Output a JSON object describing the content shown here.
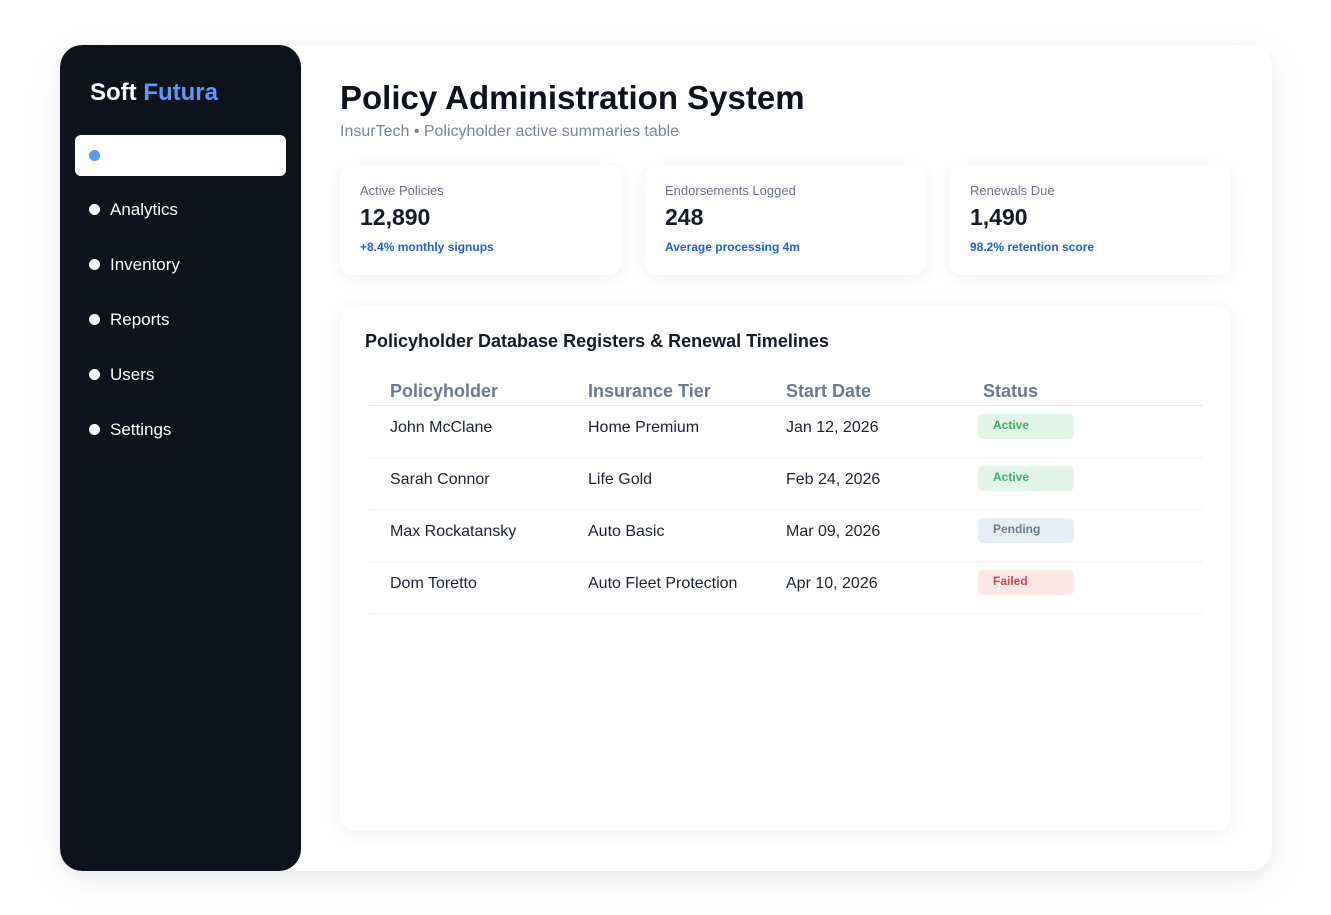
{
  "brand": {
    "name": "Soft",
    "accent": "Futura"
  },
  "sidebar": {
    "items": [
      {
        "label": ""
      },
      {
        "label": "Analytics"
      },
      {
        "label": "Inventory"
      },
      {
        "label": "Reports"
      },
      {
        "label": "Users"
      },
      {
        "label": "Settings"
      }
    ]
  },
  "header": {
    "title": "Policy Administration System",
    "subtitle": "InsurTech • Policyholder active summaries table"
  },
  "stats": [
    {
      "label": "Active Policies",
      "value": "12,890",
      "note": "+8.4% monthly signups"
    },
    {
      "label": "Endorsements Logged",
      "value": "248",
      "note": "Average processing 4m"
    },
    {
      "label": "Renewals Due",
      "value": "1,490",
      "note": "98.2% retention score"
    }
  ],
  "table": {
    "title": "Policyholder Database Registers & Renewal Timelines",
    "columns": [
      "Policyholder",
      "Insurance Tier",
      "Start Date",
      "Status"
    ],
    "rows": [
      {
        "name": "John McClane",
        "tier": "Home Premium",
        "date": "Jan 12, 2026",
        "status": "Active"
      },
      {
        "name": "Sarah Connor",
        "tier": "Life Gold",
        "date": "Feb 24, 2026",
        "status": "Active"
      },
      {
        "name": "Max Rockatansky",
        "tier": "Auto Basic",
        "date": "Mar 09, 2026",
        "status": "Pending"
      },
      {
        "name": "Dom Toretto",
        "tier": "Auto Fleet Protection",
        "date": "Apr 10, 2026",
        "status": "Failed"
      }
    ]
  },
  "colors": {
    "sidebar_bg": "#0d121c",
    "accent": "#5b9af5",
    "note_blue": "#1f5fd6",
    "status_active": "#3fae6a",
    "status_pending": "#6b7a8d",
    "status_failed": "#d84545"
  }
}
